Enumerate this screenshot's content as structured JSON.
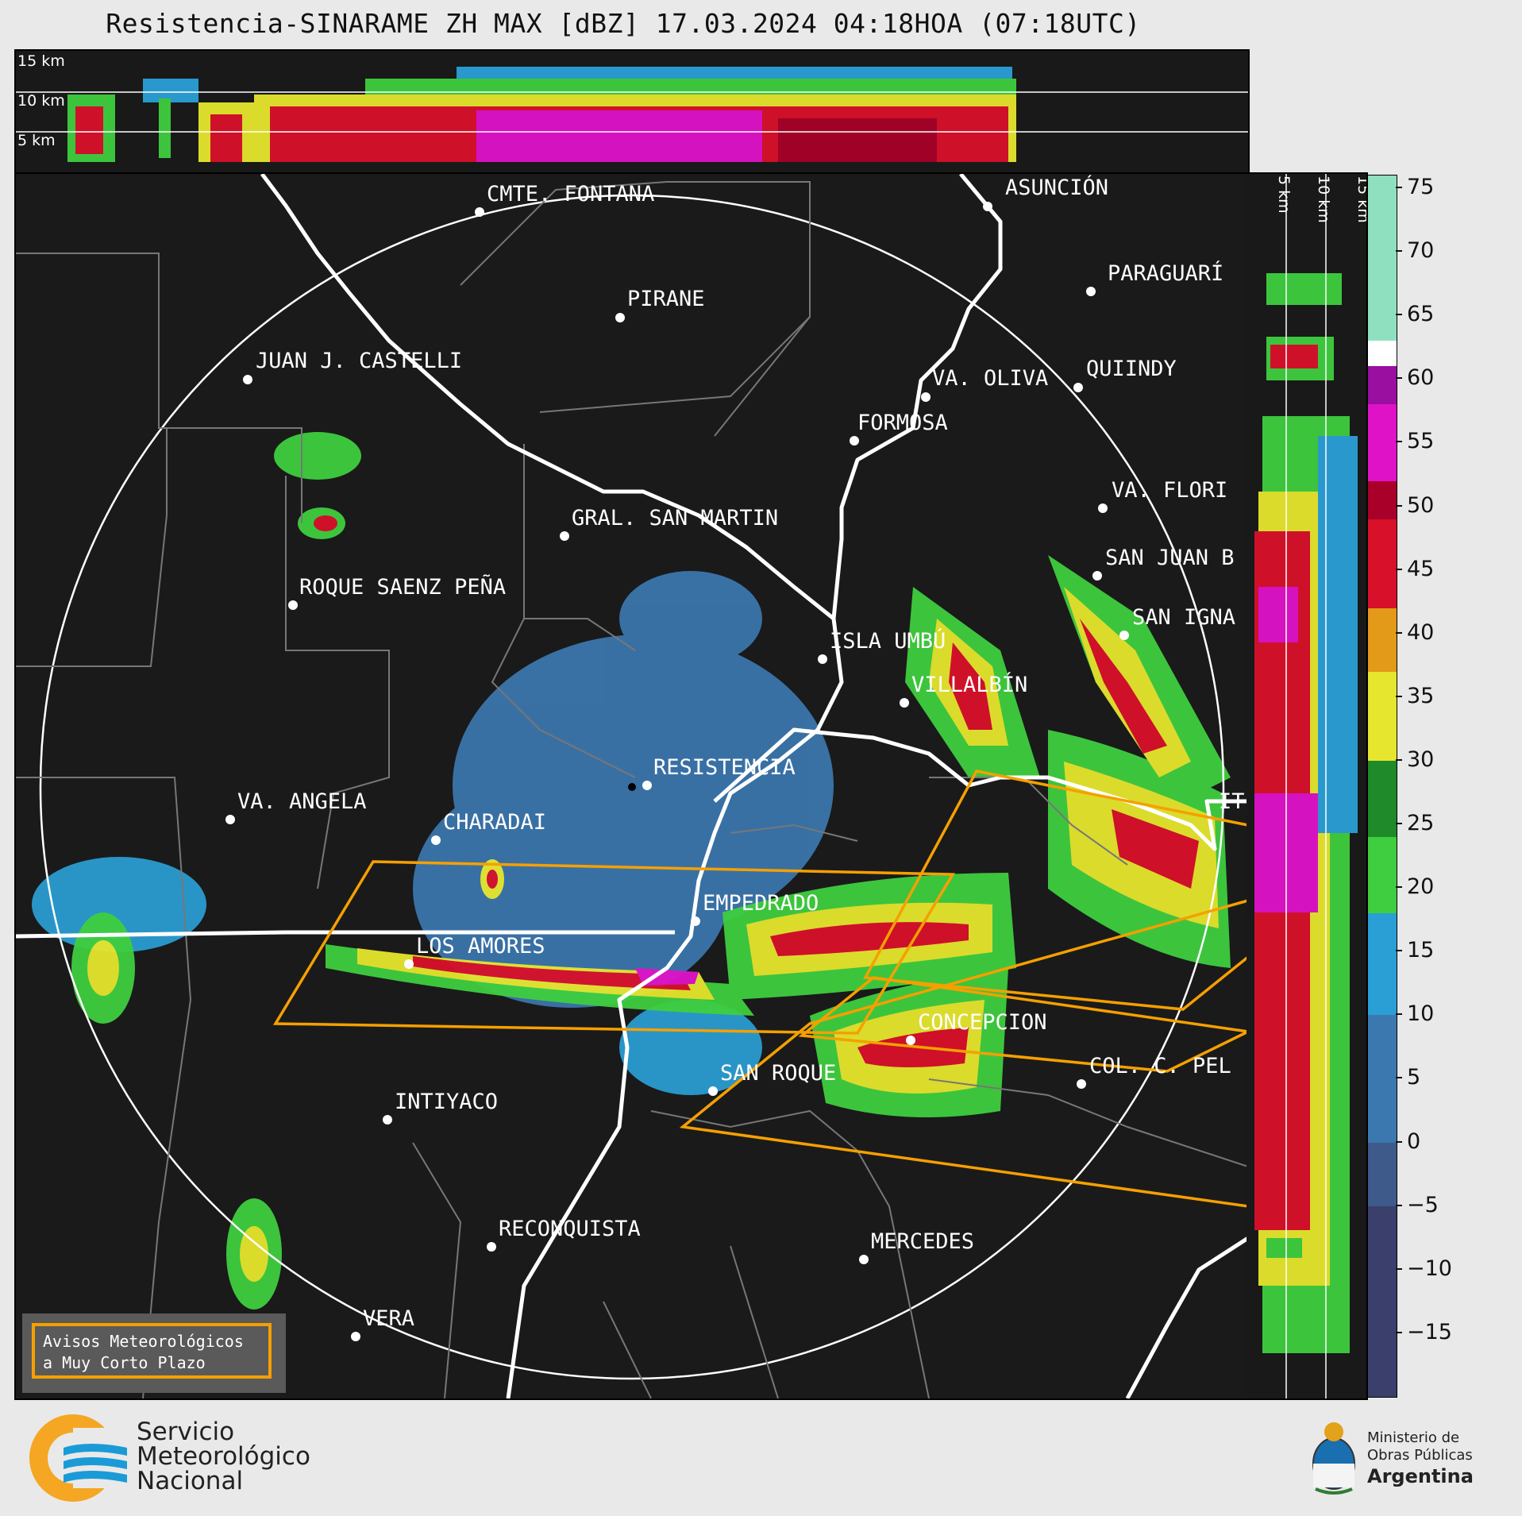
{
  "header": {
    "title": "Resistencia-SINARAME ZH MAX [dBZ] 17.03.2024 04:18HOA (07:18UTC)"
  },
  "top_section": {
    "altitude_labels": [
      "15 km",
      "10 km",
      "5 km"
    ]
  },
  "side_section": {
    "altitude_labels": [
      "5 km",
      "10 km",
      "15 km"
    ]
  },
  "colorbar": {
    "unit": "dBZ",
    "min": -20,
    "max": 76,
    "ticks": [
      "75",
      "70",
      "65",
      "60",
      "55",
      "50",
      "45",
      "40",
      "35",
      "30",
      "25",
      "20",
      "15",
      "10",
      "5",
      "0",
      "−5",
      "−10",
      "−15"
    ],
    "tick_values": [
      75,
      70,
      65,
      60,
      55,
      50,
      45,
      40,
      35,
      30,
      25,
      20,
      15,
      10,
      5,
      0,
      -5,
      -10,
      -15
    ],
    "stops": [
      {
        "from": -20,
        "to": -5,
        "color": "#3b3f6b"
      },
      {
        "from": -5,
        "to": 0,
        "color": "#3e5a8a"
      },
      {
        "from": 0,
        "to": 10,
        "color": "#3c78b0"
      },
      {
        "from": 10,
        "to": 18,
        "color": "#2a9fd6"
      },
      {
        "from": 18,
        "to": 24,
        "color": "#3fce3f"
      },
      {
        "from": 24,
        "to": 30,
        "color": "#1f8a2a"
      },
      {
        "from": 30,
        "to": 37,
        "color": "#e6e62e"
      },
      {
        "from": 37,
        "to": 42,
        "color": "#e39a19"
      },
      {
        "from": 42,
        "to": 49,
        "color": "#d9102a"
      },
      {
        "from": 49,
        "to": 52,
        "color": "#a80028"
      },
      {
        "from": 52,
        "to": 58,
        "color": "#e012c8"
      },
      {
        "from": 58,
        "to": 61,
        "color": "#9a0ea0"
      },
      {
        "from": 61,
        "to": 63,
        "color": "#ffffff"
      },
      {
        "from": 63,
        "to": 76,
        "color": "#8fe0bf"
      }
    ]
  },
  "map": {
    "cities": [
      {
        "name": "CMTE. FONTANA"
      },
      {
        "name": "ASUNCIÓN"
      },
      {
        "name": "PARAGUARÍ"
      },
      {
        "name": "PIRANE"
      },
      {
        "name": "JUAN J. CASTELLI"
      },
      {
        "name": "VA. OLIVA"
      },
      {
        "name": "QUIINDY"
      },
      {
        "name": "FORMOSA"
      },
      {
        "name": "VA. FLORI"
      },
      {
        "name": "GRAL. SAN MARTIN"
      },
      {
        "name": "SAN JUAN B"
      },
      {
        "name": "ROQUE SAENZ PEÑA"
      },
      {
        "name": "SAN IGNA"
      },
      {
        "name": "ISLA UMBÚ"
      },
      {
        "name": "VILLALBÍN"
      },
      {
        "name": "RESISTENCIA"
      },
      {
        "name": "VA. ANGELA"
      },
      {
        "name": "CHARADAI"
      },
      {
        "name": "EMPEDRADO"
      },
      {
        "name": "LOS AMORES"
      },
      {
        "name": "CONCEPCION"
      },
      {
        "name": "SAN ROQUE"
      },
      {
        "name": "COL. C. PEL"
      },
      {
        "name": "INTIYACO"
      },
      {
        "name": "RECONQUISTA"
      },
      {
        "name": "MERCEDES"
      },
      {
        "name": "VERA"
      },
      {
        "name": "IT"
      }
    ]
  },
  "legend": {
    "line1": "Avisos Meteorológicos",
    "line2": "a Muy Corto Plazo"
  },
  "footer": {
    "smn_line1": "Servicio",
    "smn_line2": "Meteorológico",
    "smn_line3": "Nacional",
    "ministry_line1": "Ministerio de",
    "ministry_line2": "Obras Públicas",
    "ministry_line3": "Argentina"
  },
  "colors": {
    "warning_polygon": "#f5a000",
    "boundary": "#ffffff",
    "subdivision": "#777777",
    "background": "#1a1a1a"
  }
}
